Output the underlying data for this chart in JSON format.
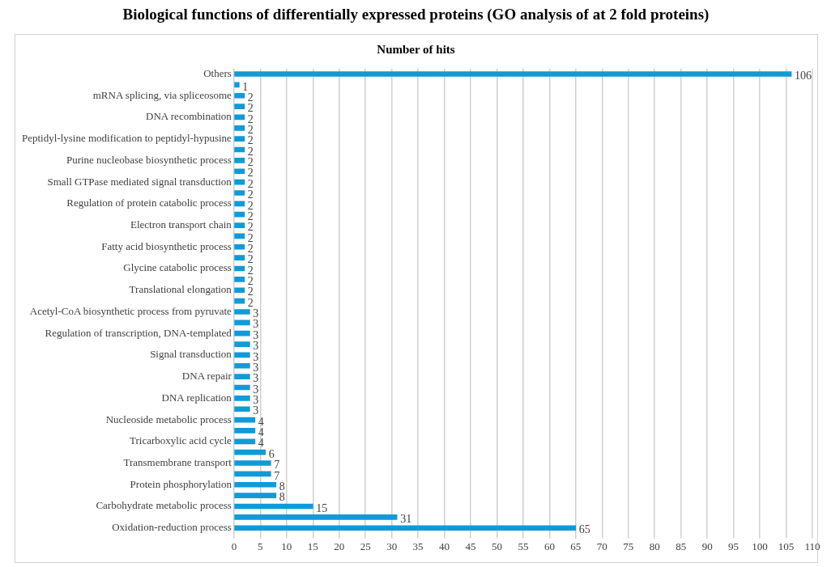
{
  "chart_data": {
    "type": "bar",
    "orientation": "horizontal",
    "title": "Biological functions of differentially expressed proteins (GO analysis of at 2 fold proteins)",
    "subtitle": "Number of hits",
    "categories": [
      "Others",
      null,
      "mRNA splicing, via spliceosome",
      null,
      "DNA recombination",
      null,
      "Peptidyl-lysine modification to peptidyl-hypusine",
      null,
      "Purine nucleobase biosynthetic process",
      null,
      "Small GTPase mediated signal transduction",
      null,
      "Regulation of protein catabolic process",
      null,
      "Electron transport chain",
      null,
      "Fatty acid biosynthetic process",
      null,
      "Glycine catabolic process",
      null,
      "Translational elongation",
      null,
      "Acetyl-CoA biosynthetic process from pyruvate",
      null,
      "Regulation of transcription, DNA-templated",
      null,
      "Signal transduction",
      null,
      "DNA repair",
      null,
      "DNA replication",
      null,
      "Nucleoside metabolic process",
      null,
      "Tricarboxylic acid cycle",
      null,
      "Transmembrane transport",
      null,
      "Protein phosphorylation",
      null,
      "Carbohydrate metabolic process",
      null,
      "Oxidation-reduction process"
    ],
    "values": [
      106,
      1,
      2,
      2,
      2,
      2,
      2,
      2,
      2,
      2,
      2,
      2,
      2,
      2,
      2,
      2,
      2,
      2,
      2,
      2,
      2,
      2,
      3,
      3,
      3,
      3,
      3,
      3,
      3,
      3,
      3,
      3,
      4,
      4,
      4,
      6,
      7,
      7,
      8,
      8,
      15,
      31,
      65
    ],
    "color": "#0f9ad8",
    "xlim": [
      0,
      110
    ],
    "xticks": [
      0,
      5,
      10,
      15,
      20,
      25,
      30,
      35,
      40,
      45,
      50,
      55,
      60,
      65,
      70,
      75,
      80,
      85,
      90,
      95,
      100,
      105,
      110
    ],
    "grid": "x",
    "data_labels": true,
    "legend": false
  }
}
